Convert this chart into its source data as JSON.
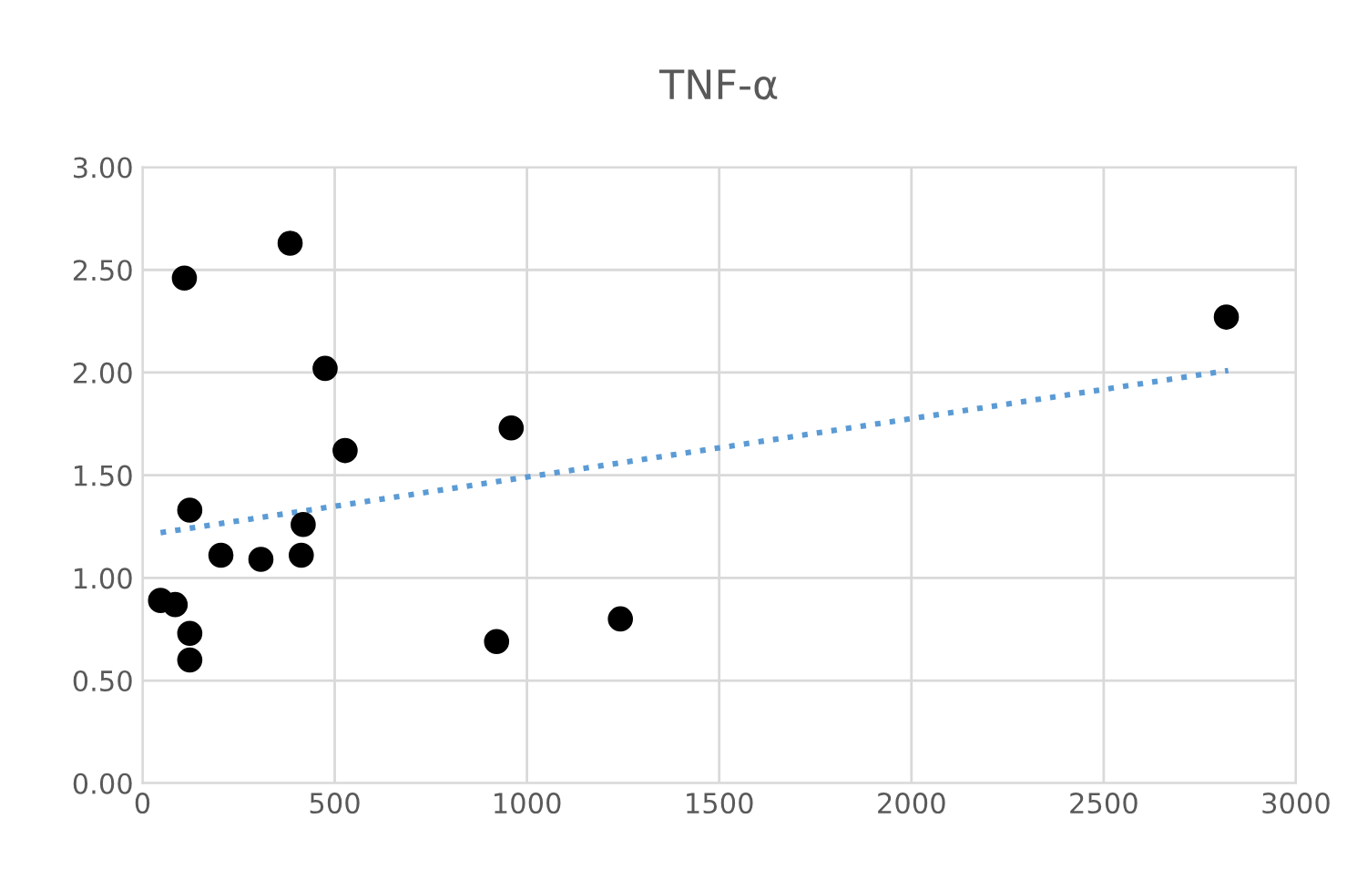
{
  "chart_data": {
    "type": "scatter",
    "title": "TNF-α",
    "series": [
      {
        "color": "#000000",
        "marker": "circle",
        "x": [
          47,
          85,
          109,
          123,
          123,
          123,
          204,
          308,
          384,
          413,
          418,
          475,
          527,
          921,
          959,
          1243,
          2819
        ],
        "values": [
          0.89,
          0.87,
          2.46,
          1.33,
          0.73,
          0.6,
          1.11,
          1.09,
          2.63,
          1.11,
          1.26,
          2.02,
          1.62,
          0.69,
          1.73,
          0.8,
          2.27
        ]
      },
      {
        "type": "line",
        "color": "#5b9bd5",
        "line_style": "dotted",
        "marker": "none",
        "x": [
          47,
          2824
        ],
        "values": [
          1.22,
          2.01
        ]
      }
    ],
    "xlim": [
      0,
      3000
    ],
    "xticks": [
      0,
      500,
      1000,
      1500,
      2000,
      2500,
      3000
    ],
    "ylim": [
      0,
      3
    ],
    "yticks": [
      {
        "value": 0,
        "label": "0.00"
      },
      {
        "value": 0.5,
        "label": "0.50"
      },
      {
        "value": 1,
        "label": "1.00"
      },
      {
        "value": 1.5,
        "label": "1.50"
      },
      {
        "value": 2,
        "label": "2.00"
      },
      {
        "value": 2.5,
        "label": "2.50"
      },
      {
        "value": 3,
        "label": "3.00"
      }
    ],
    "grid": true,
    "legend": false
  }
}
